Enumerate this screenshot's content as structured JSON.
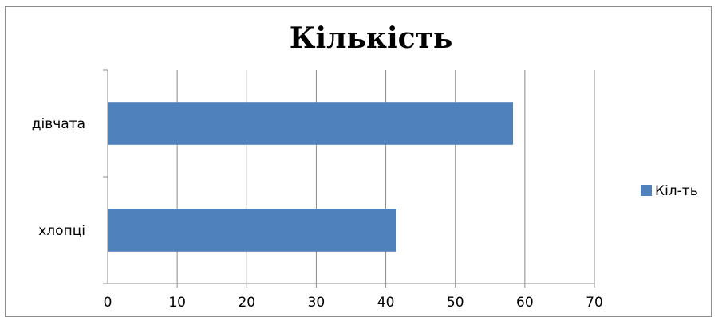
{
  "chart_data": {
    "type": "bar",
    "orientation": "horizontal",
    "title": "Кількість",
    "categories": [
      "дівчата",
      "хлопці"
    ],
    "series": [
      {
        "name": "Кіл-ть",
        "values": [
          58.3,
          41.5
        ],
        "color": "#4f81bd"
      }
    ],
    "xlim": [
      0,
      70
    ],
    "x_ticks": [
      "0",
      "10",
      "20",
      "30",
      "40",
      "50",
      "60",
      "70"
    ],
    "grid": "vertical",
    "legend": "right"
  }
}
